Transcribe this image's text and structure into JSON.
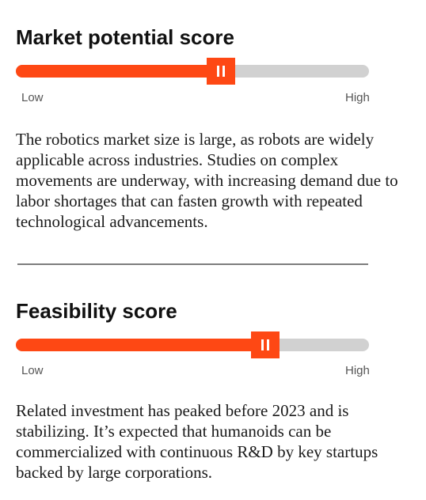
{
  "sections": [
    {
      "title": "Market potential score",
      "score_fraction": 0.58,
      "scale_low": "Low",
      "scale_high": "High",
      "description": "The robotics market size is large, as robots are widely applicable across industries. Studies on complex movements are underway, with increasing demand due to labor shortages that can fasten growth with repeated technological advancements."
    },
    {
      "title": "Feasibility score",
      "score_fraction": 0.707,
      "scale_low": "Low",
      "scale_high": "High",
      "description": "Related investment has peaked before 2023 and is stabilizing. It’s expected that humanoids can be commercialized with continuous R&D by key startups backed by large corporations."
    }
  ],
  "colors": {
    "accent": "#fe4814",
    "track": "#d1d1d1",
    "divider": "#7d7d7d"
  }
}
